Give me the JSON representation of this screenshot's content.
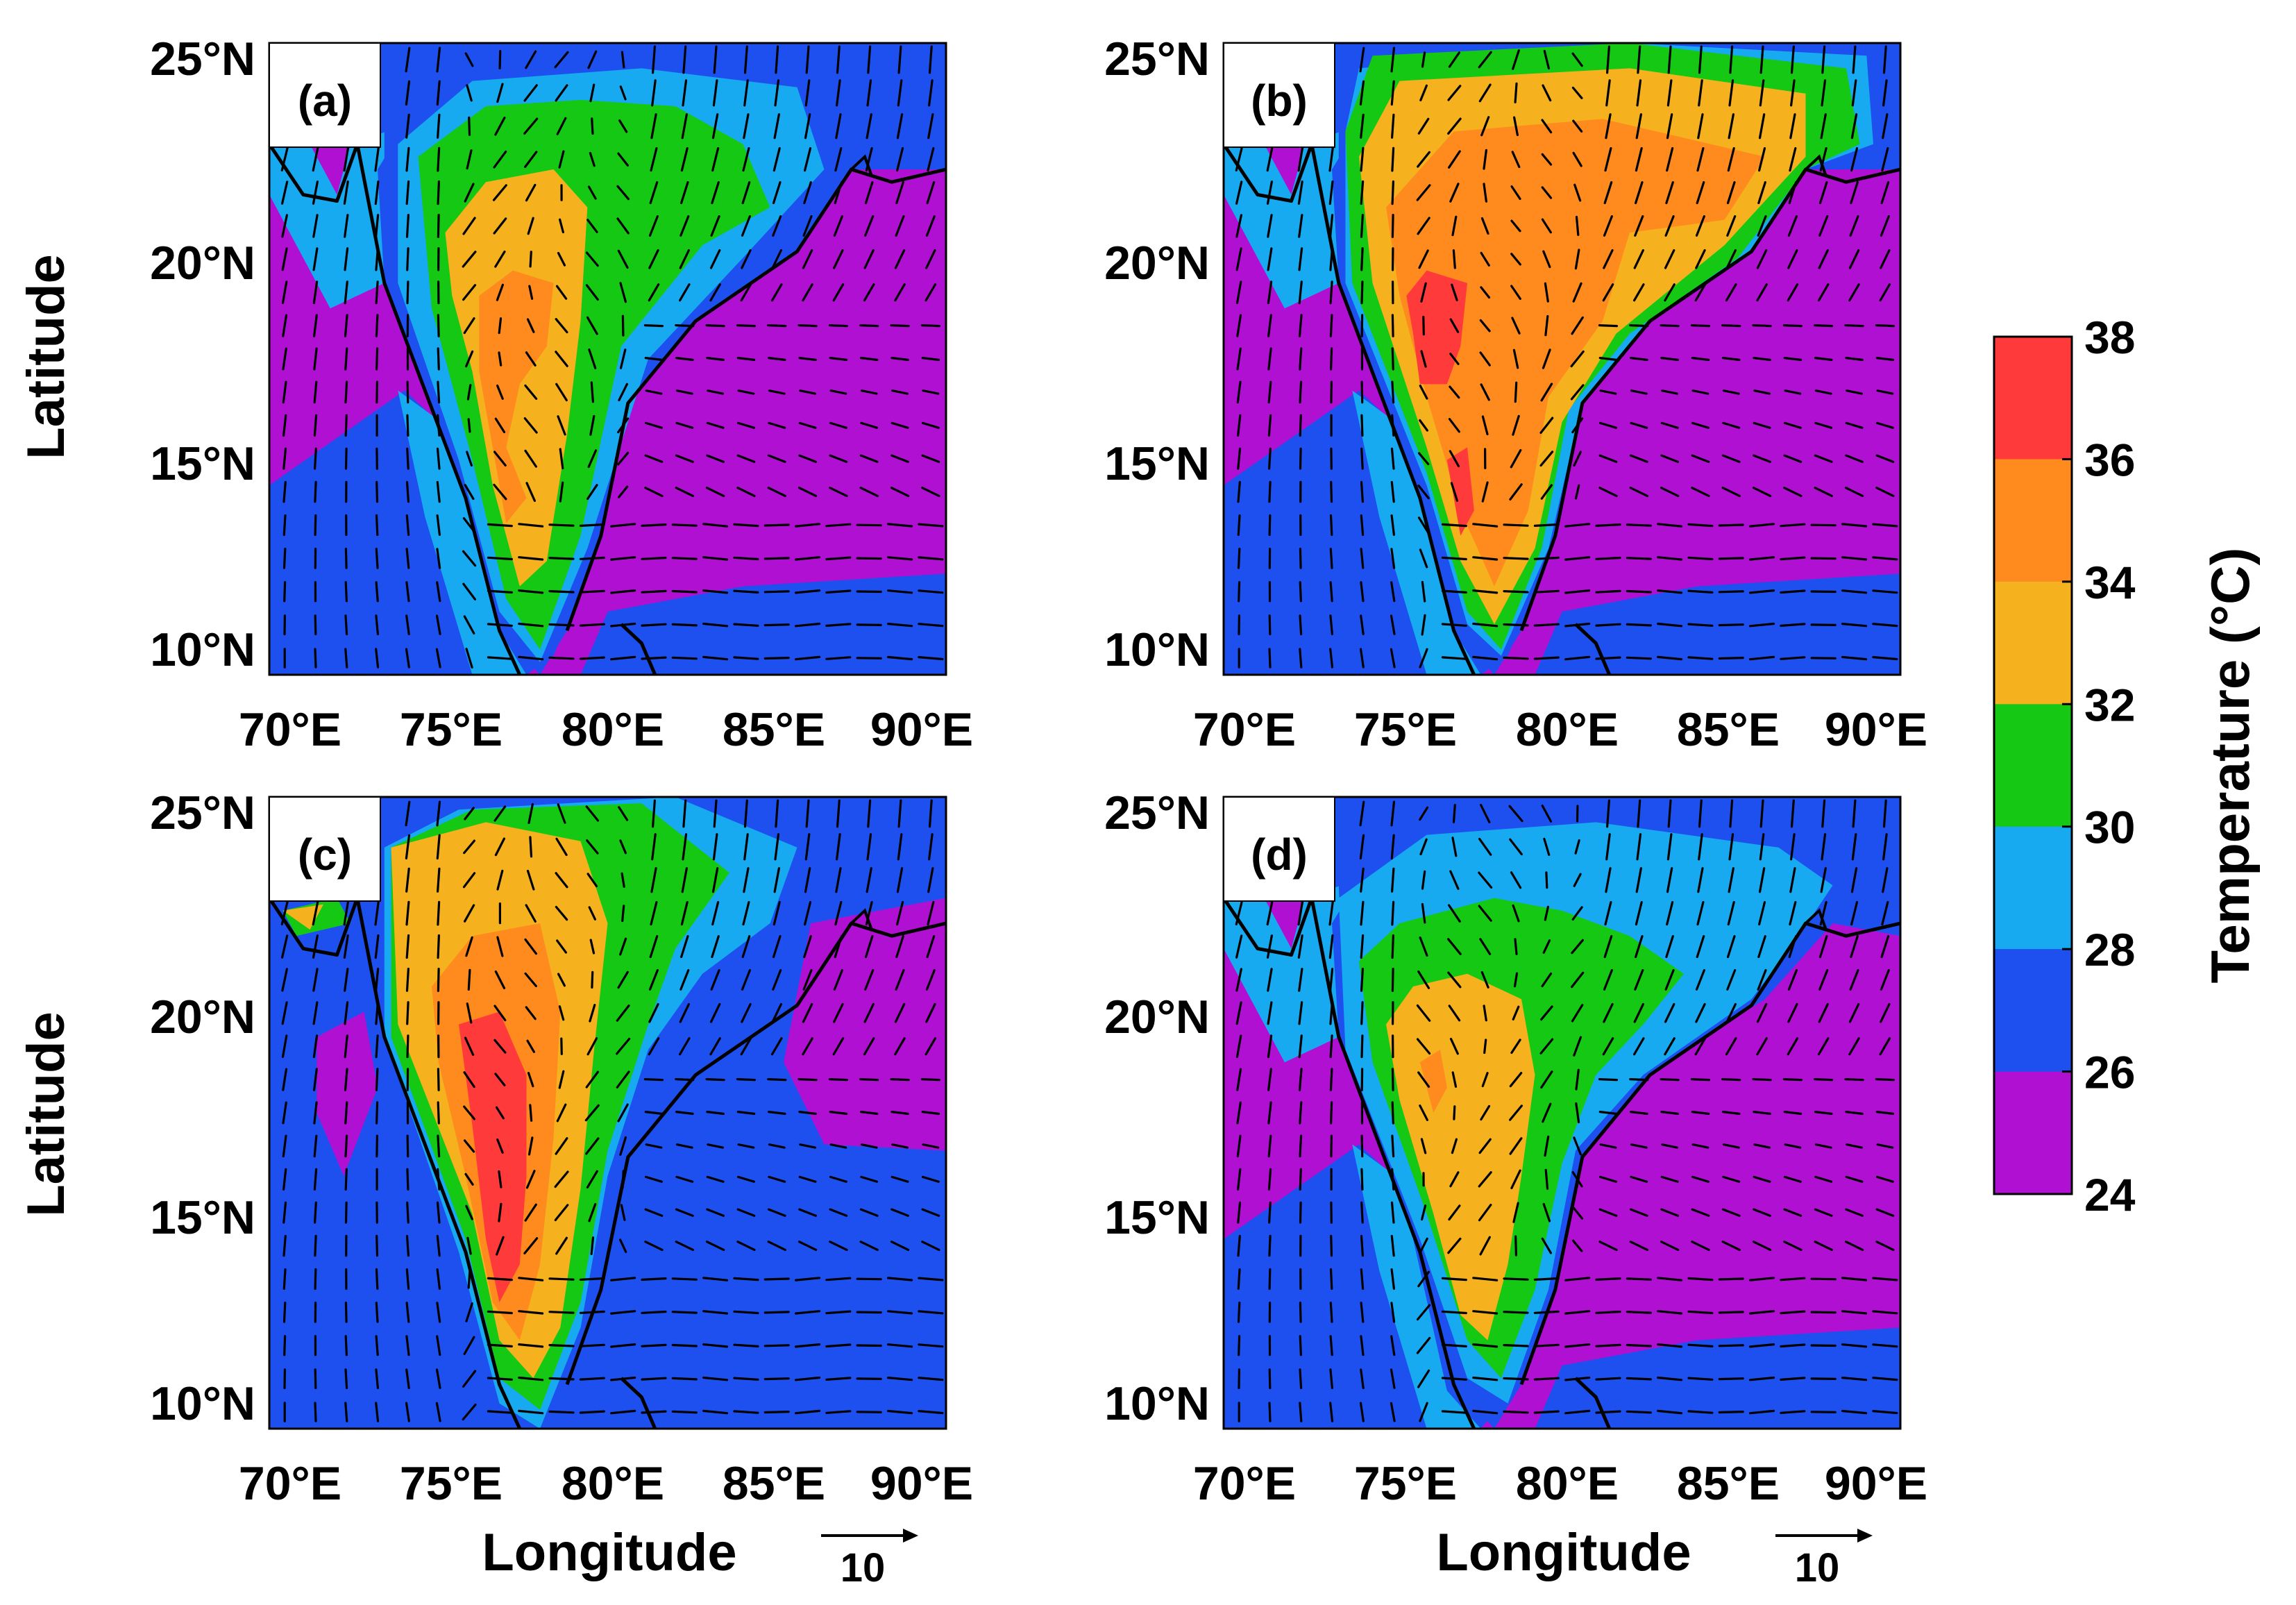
{
  "figure": {
    "panels": [
      {
        "label": "(a)",
        "variant": 0
      },
      {
        "label": "(b)",
        "variant": 1
      },
      {
        "label": "(c)",
        "variant": 2
      },
      {
        "label": "(d)",
        "variant": 3
      }
    ],
    "lat_ticks": [
      "25°N",
      "20°N",
      "15°N",
      "10°N"
    ],
    "lon_ticks": [
      "70°E",
      "75°E",
      "80°E",
      "85°E",
      "90°E"
    ],
    "ylabel": "Latitude",
    "xlabel": "Longitude",
    "reference_vector": "10",
    "colorbar": {
      "title": "Temperature (°C)",
      "ticks": [
        "38",
        "36",
        "34",
        "32",
        "30",
        "28",
        "26",
        "24"
      ],
      "colors": [
        "#ff3a3a",
        "#ff8a1e",
        "#f5b21e",
        "#14c814",
        "#18aaf0",
        "#1e50f0",
        "#b010d2"
      ]
    }
  }
}
